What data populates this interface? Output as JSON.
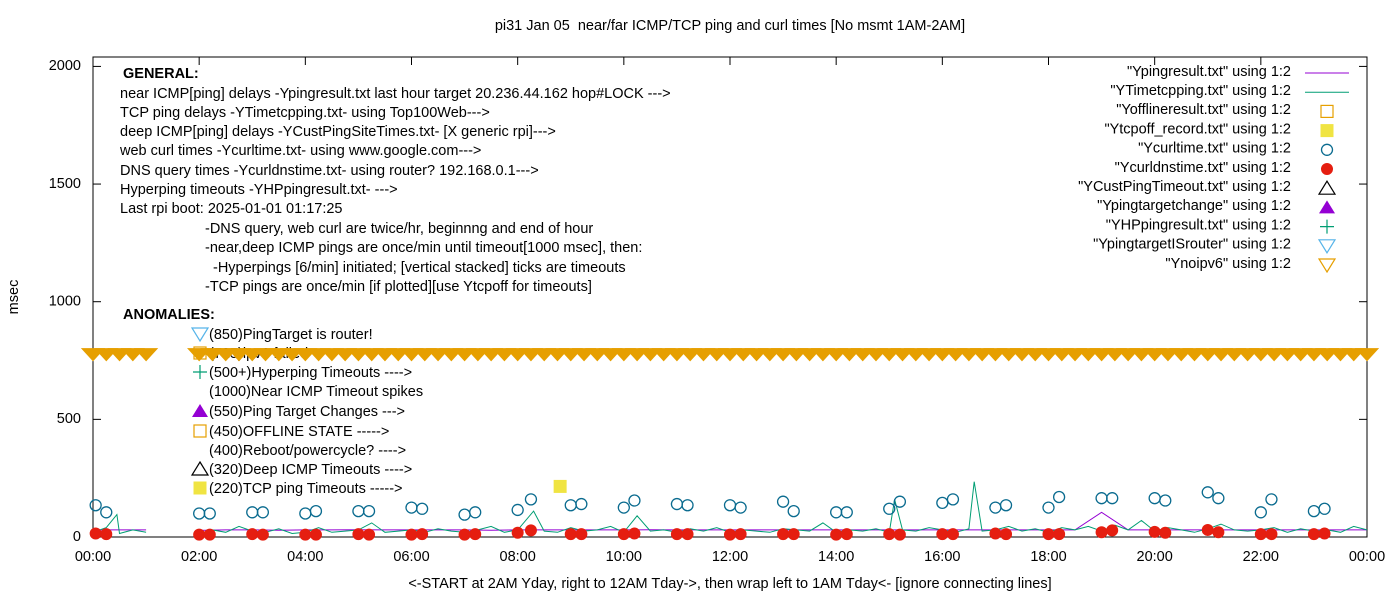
{
  "chart_data": {
    "type": "line",
    "title": "pi31 Jan 05  near/far ICMP/TCP ping and curl times [No msmt 1AM-2AM]",
    "xlabel": "<-START at 2AM Yday, right to 12AM Tday->, then wrap left to 1AM Tday<- [ignore connecting lines]",
    "ylabel": "msec",
    "xlim": [
      0,
      24
    ],
    "ylim": [
      0,
      2040
    ],
    "xticks": [
      {
        "value": 0,
        "label": "00:00"
      },
      {
        "value": 2,
        "label": "02:00"
      },
      {
        "value": 4,
        "label": "04:00"
      },
      {
        "value": 6,
        "label": "06:00"
      },
      {
        "value": 8,
        "label": "08:00"
      },
      {
        "value": 10,
        "label": "10:00"
      },
      {
        "value": 12,
        "label": "12:00"
      },
      {
        "value": 14,
        "label": "14:00"
      },
      {
        "value": 16,
        "label": "16:00"
      },
      {
        "value": 18,
        "label": "18:00"
      },
      {
        "value": 20,
        "label": "20:00"
      },
      {
        "value": 22,
        "label": "22:00"
      },
      {
        "value": 24,
        "label": "00:00"
      }
    ],
    "yticks": [
      0,
      500,
      1000,
      1500,
      2000
    ],
    "legend": "top-right",
    "annotations": [
      "GENERAL:",
      "near ICMP[ping] delays -Ypingresult.txt last hour target 20.236.44.162 hop#LOCK --->",
      "TCP ping delays -YTimetcpping.txt- using Top100Web--->",
      "deep ICMP[ping] delays -YCustPingSiteTimes.txt- [X generic rpi]--->",
      "web curl times -Ycurltime.txt- using www.google.com--->",
      "DNS query times -Ycurldnstime.txt- using router? 192.168.0.1--->",
      "Hyperping timeouts -YHPpingresult.txt- --->",
      "Last rpi boot: 2025-01-01 01:17:25",
      "-DNS query, web curl are twice/hr, beginnng and end of hour",
      "-near,deep ICMP pings are once/min until timeout[1000 msec], then:",
      "-Hyperpings [6/min] initiated; [vertical stacked] ticks are timeouts",
      "-TCP pings are once/min [if plotted][use Ytcpoff for timeouts]",
      "ANOMALIES:",
      "(850)PingTarget is router!",
      "(725)ipv6 failed",
      "(500+)Hyperping Timeouts ---->",
      "(1000)Near ICMP Timeout spikes",
      "(550)Ping Target Changes --->",
      "(450)OFFLINE STATE ----->",
      "(400)Reboot/powercycle? ---->",
      "(320)Deep ICMP Timeouts ---->",
      "(220)TCP ping Timeouts ----->"
    ],
    "series": [
      {
        "name": "\"Ypingresult.txt\" using 1:2",
        "color": "#9400d3",
        "marker": "line",
        "x": [
          0,
          0.5,
          1,
          1.5,
          2,
          2.5,
          3,
          3.5,
          4,
          4.5,
          5,
          5.5,
          6,
          6.5,
          7,
          7.5,
          8,
          8.5,
          9,
          9.5,
          10,
          10.5,
          11,
          11.5,
          12,
          12.5,
          13,
          13.5,
          14,
          14.5,
          15,
          15.5,
          16,
          16.5,
          17,
          17.5,
          18,
          18.5,
          19,
          19.5,
          20,
          20.5,
          21,
          21.5,
          22,
          22.5,
          23,
          23.5,
          24
        ],
        "values": [
          30,
          30,
          30,
          null,
          28,
          30,
          30,
          29,
          30,
          30,
          31,
          30,
          30,
          30,
          30,
          29,
          30,
          30,
          30,
          30,
          30,
          31,
          30,
          30,
          30,
          30,
          30,
          30,
          30,
          30,
          30,
          30,
          30,
          30,
          30,
          30,
          30,
          30,
          105,
          30,
          30,
          30,
          30,
          30,
          30,
          30,
          30,
          30,
          30
        ]
      },
      {
        "name": "\"YTimetcpping.txt\" using 1:2",
        "color": "#009e73",
        "marker": "line",
        "x": [
          0,
          0.25,
          0.45,
          0.5,
          0.75,
          1,
          1.5,
          2,
          2.25,
          2.5,
          2.75,
          3,
          3.25,
          3.5,
          3.75,
          4,
          4.25,
          4.5,
          4.75,
          5,
          5.25,
          5.5,
          5.75,
          6,
          6.25,
          6.5,
          6.75,
          7,
          7.25,
          7.5,
          7.75,
          8,
          8.3,
          8.5,
          8.75,
          9,
          9.25,
          9.5,
          9.75,
          10,
          10.25,
          10.5,
          10.75,
          11,
          11.25,
          11.5,
          11.75,
          12,
          12.25,
          12.5,
          12.75,
          13,
          13.25,
          13.5,
          13.75,
          14,
          14.25,
          14.5,
          14.75,
          15,
          15.1,
          15.25,
          15.5,
          15.75,
          16,
          16.25,
          16.5,
          16.6,
          16.75,
          17,
          17.25,
          17.5,
          17.75,
          18,
          18.25,
          18.5,
          18.75,
          19,
          19.25,
          19.5,
          19.75,
          20,
          20.25,
          20.5,
          20.75,
          21,
          21.25,
          21.5,
          21.75,
          22,
          22.25,
          22.5,
          22.75,
          23,
          23.25,
          23.5,
          23.75,
          24
        ],
        "values": [
          20,
          40,
          95,
          15,
          30,
          20,
          null,
          15,
          30,
          20,
          45,
          25,
          20,
          35,
          15,
          20,
          40,
          20,
          25,
          30,
          60,
          20,
          25,
          30,
          20,
          35,
          25,
          20,
          30,
          45,
          20,
          30,
          110,
          25,
          20,
          40,
          25,
          30,
          45,
          20,
          90,
          25,
          30,
          20,
          35,
          25,
          40,
          20,
          30,
          25,
          20,
          35,
          30,
          25,
          60,
          20,
          30,
          25,
          35,
          20,
          160,
          30,
          25,
          40,
          30,
          20,
          35,
          235,
          25,
          30,
          45,
          25,
          35,
          20,
          40,
          30,
          45,
          25,
          50,
          30,
          70,
          25,
          40,
          30,
          20,
          35,
          55,
          30,
          25,
          30,
          40,
          20,
          35,
          25,
          30,
          20,
          45,
          30
        ]
      },
      {
        "name": "\"Yofflineresult.txt\" using 1:2",
        "color": "#e69f00",
        "marker": "square-open",
        "x": [],
        "values": []
      },
      {
        "name": "\"Ytcpoff_record.txt\" using 1:2",
        "color": "#f0e442",
        "marker": "square-filled",
        "x": [
          8.8
        ],
        "values": [
          215
        ]
      },
      {
        "name": "\"Ycurltime.txt\" using 1:2",
        "color": "#0a6b8f",
        "marker": "circle-open",
        "x": [
          0.05,
          0.25,
          2,
          2.2,
          3,
          3.2,
          4,
          4.2,
          5,
          5.2,
          6,
          6.2,
          7,
          7.2,
          8,
          8.25,
          9,
          9.2,
          10,
          10.2,
          11,
          11.2,
          12,
          12.2,
          13,
          13.2,
          14,
          14.2,
          15,
          15.2,
          16,
          16.2,
          17,
          17.2,
          18,
          18.2,
          19,
          19.2,
          20,
          20.2,
          21,
          21.2,
          22,
          22.2,
          23,
          23.2
        ],
        "values": [
          135,
          105,
          100,
          100,
          105,
          105,
          100,
          110,
          110,
          110,
          125,
          120,
          95,
          105,
          115,
          160,
          135,
          140,
          125,
          155,
          140,
          135,
          135,
          125,
          150,
          110,
          105,
          105,
          120,
          150,
          145,
          160,
          125,
          135,
          125,
          170,
          165,
          165,
          165,
          155,
          190,
          165,
          105,
          160,
          110,
          120
        ]
      },
      {
        "name": "\"Ycurldnstime.txt\" using 1:2",
        "color": "#e51e10",
        "marker": "circle-filled",
        "x": [
          0.05,
          0.25,
          2,
          2.2,
          3,
          3.2,
          4,
          4.2,
          5,
          5.2,
          6,
          6.2,
          7,
          7.2,
          8,
          8.25,
          9,
          9.2,
          10,
          10.2,
          11,
          11.2,
          12,
          12.2,
          13,
          13.2,
          14,
          14.2,
          15,
          15.2,
          16,
          16.2,
          17,
          17.2,
          18,
          18.2,
          19,
          19.2,
          20,
          20.2,
          21,
          21.2,
          22,
          22.2,
          23,
          23.2
        ],
        "values": [
          15,
          12,
          10,
          10,
          12,
          10,
          10,
          10,
          12,
          10,
          10,
          12,
          10,
          12,
          18,
          28,
          12,
          12,
          12,
          15,
          12,
          12,
          10,
          12,
          12,
          12,
          10,
          12,
          12,
          10,
          12,
          12,
          15,
          12,
          12,
          12,
          20,
          28,
          22,
          18,
          30,
          20,
          12,
          12,
          12,
          15
        ]
      },
      {
        "name": "\"YCustPingTimeout.txt\" using 1:2",
        "color": "#000000",
        "marker": "triangle-open",
        "x": [],
        "values": []
      },
      {
        "name": "\"Ypingtargetchange\" using 1:2",
        "color": "#9400d3",
        "marker": "triangle-filled",
        "x": [],
        "values": []
      },
      {
        "name": "\"YHPpingresult.txt\" using 1:2",
        "color": "#009e73",
        "marker": "plus",
        "x": [],
        "values": []
      },
      {
        "name": "\"YpingtargetISrouter\" using 1:2",
        "color": "#56b4e9",
        "marker": "triangle-down-open",
        "x": [],
        "values": []
      },
      {
        "name": "\"Ynoipv6\" using 1:2",
        "color": "#e69f00",
        "marker": "triangle-down-open",
        "x": [
          0,
          0.25,
          0.5,
          0.75,
          1,
          2,
          2.25,
          2.5,
          2.75,
          3,
          3.25,
          3.5,
          3.75,
          4,
          4.25,
          4.5,
          4.75,
          5,
          5.25,
          5.5,
          5.75,
          6,
          6.25,
          6.5,
          6.75,
          7,
          7.25,
          7.5,
          7.75,
          8,
          8.25,
          8.5,
          8.75,
          9,
          9.25,
          9.5,
          9.75,
          10,
          10.25,
          10.5,
          10.75,
          11,
          11.25,
          11.5,
          11.75,
          12,
          12.25,
          12.5,
          12.75,
          13,
          13.25,
          13.5,
          13.75,
          14,
          14.25,
          14.5,
          14.75,
          15,
          15.25,
          15.5,
          15.75,
          16,
          16.25,
          16.5,
          16.75,
          17,
          17.25,
          17.5,
          17.75,
          18,
          18.25,
          18.5,
          18.75,
          19,
          19.25,
          19.5,
          19.75,
          20,
          20.25,
          20.5,
          20.75,
          21,
          21.25,
          21.5,
          21.75,
          22,
          22.25,
          22.5,
          22.75,
          23,
          23.25,
          23.5,
          23.75,
          24
        ],
        "values": [
          775,
          775,
          775,
          775,
          775,
          775,
          775,
          775,
          775,
          775,
          775,
          775,
          775,
          775,
          775,
          775,
          775,
          775,
          775,
          775,
          775,
          775,
          775,
          775,
          775,
          775,
          775,
          775,
          775,
          775,
          775,
          775,
          775,
          775,
          775,
          775,
          775,
          775,
          775,
          775,
          775,
          775,
          775,
          775,
          775,
          775,
          775,
          775,
          775,
          775,
          775,
          775,
          775,
          775,
          775,
          775,
          775,
          775,
          775,
          775,
          775,
          775,
          775,
          775,
          775,
          775,
          775,
          775,
          775,
          775,
          775,
          775,
          775,
          775,
          775,
          775,
          775,
          775,
          775,
          775,
          775,
          775,
          775,
          775,
          775,
          775,
          775,
          775,
          775,
          775,
          775,
          775,
          775,
          775
        ]
      }
    ]
  }
}
